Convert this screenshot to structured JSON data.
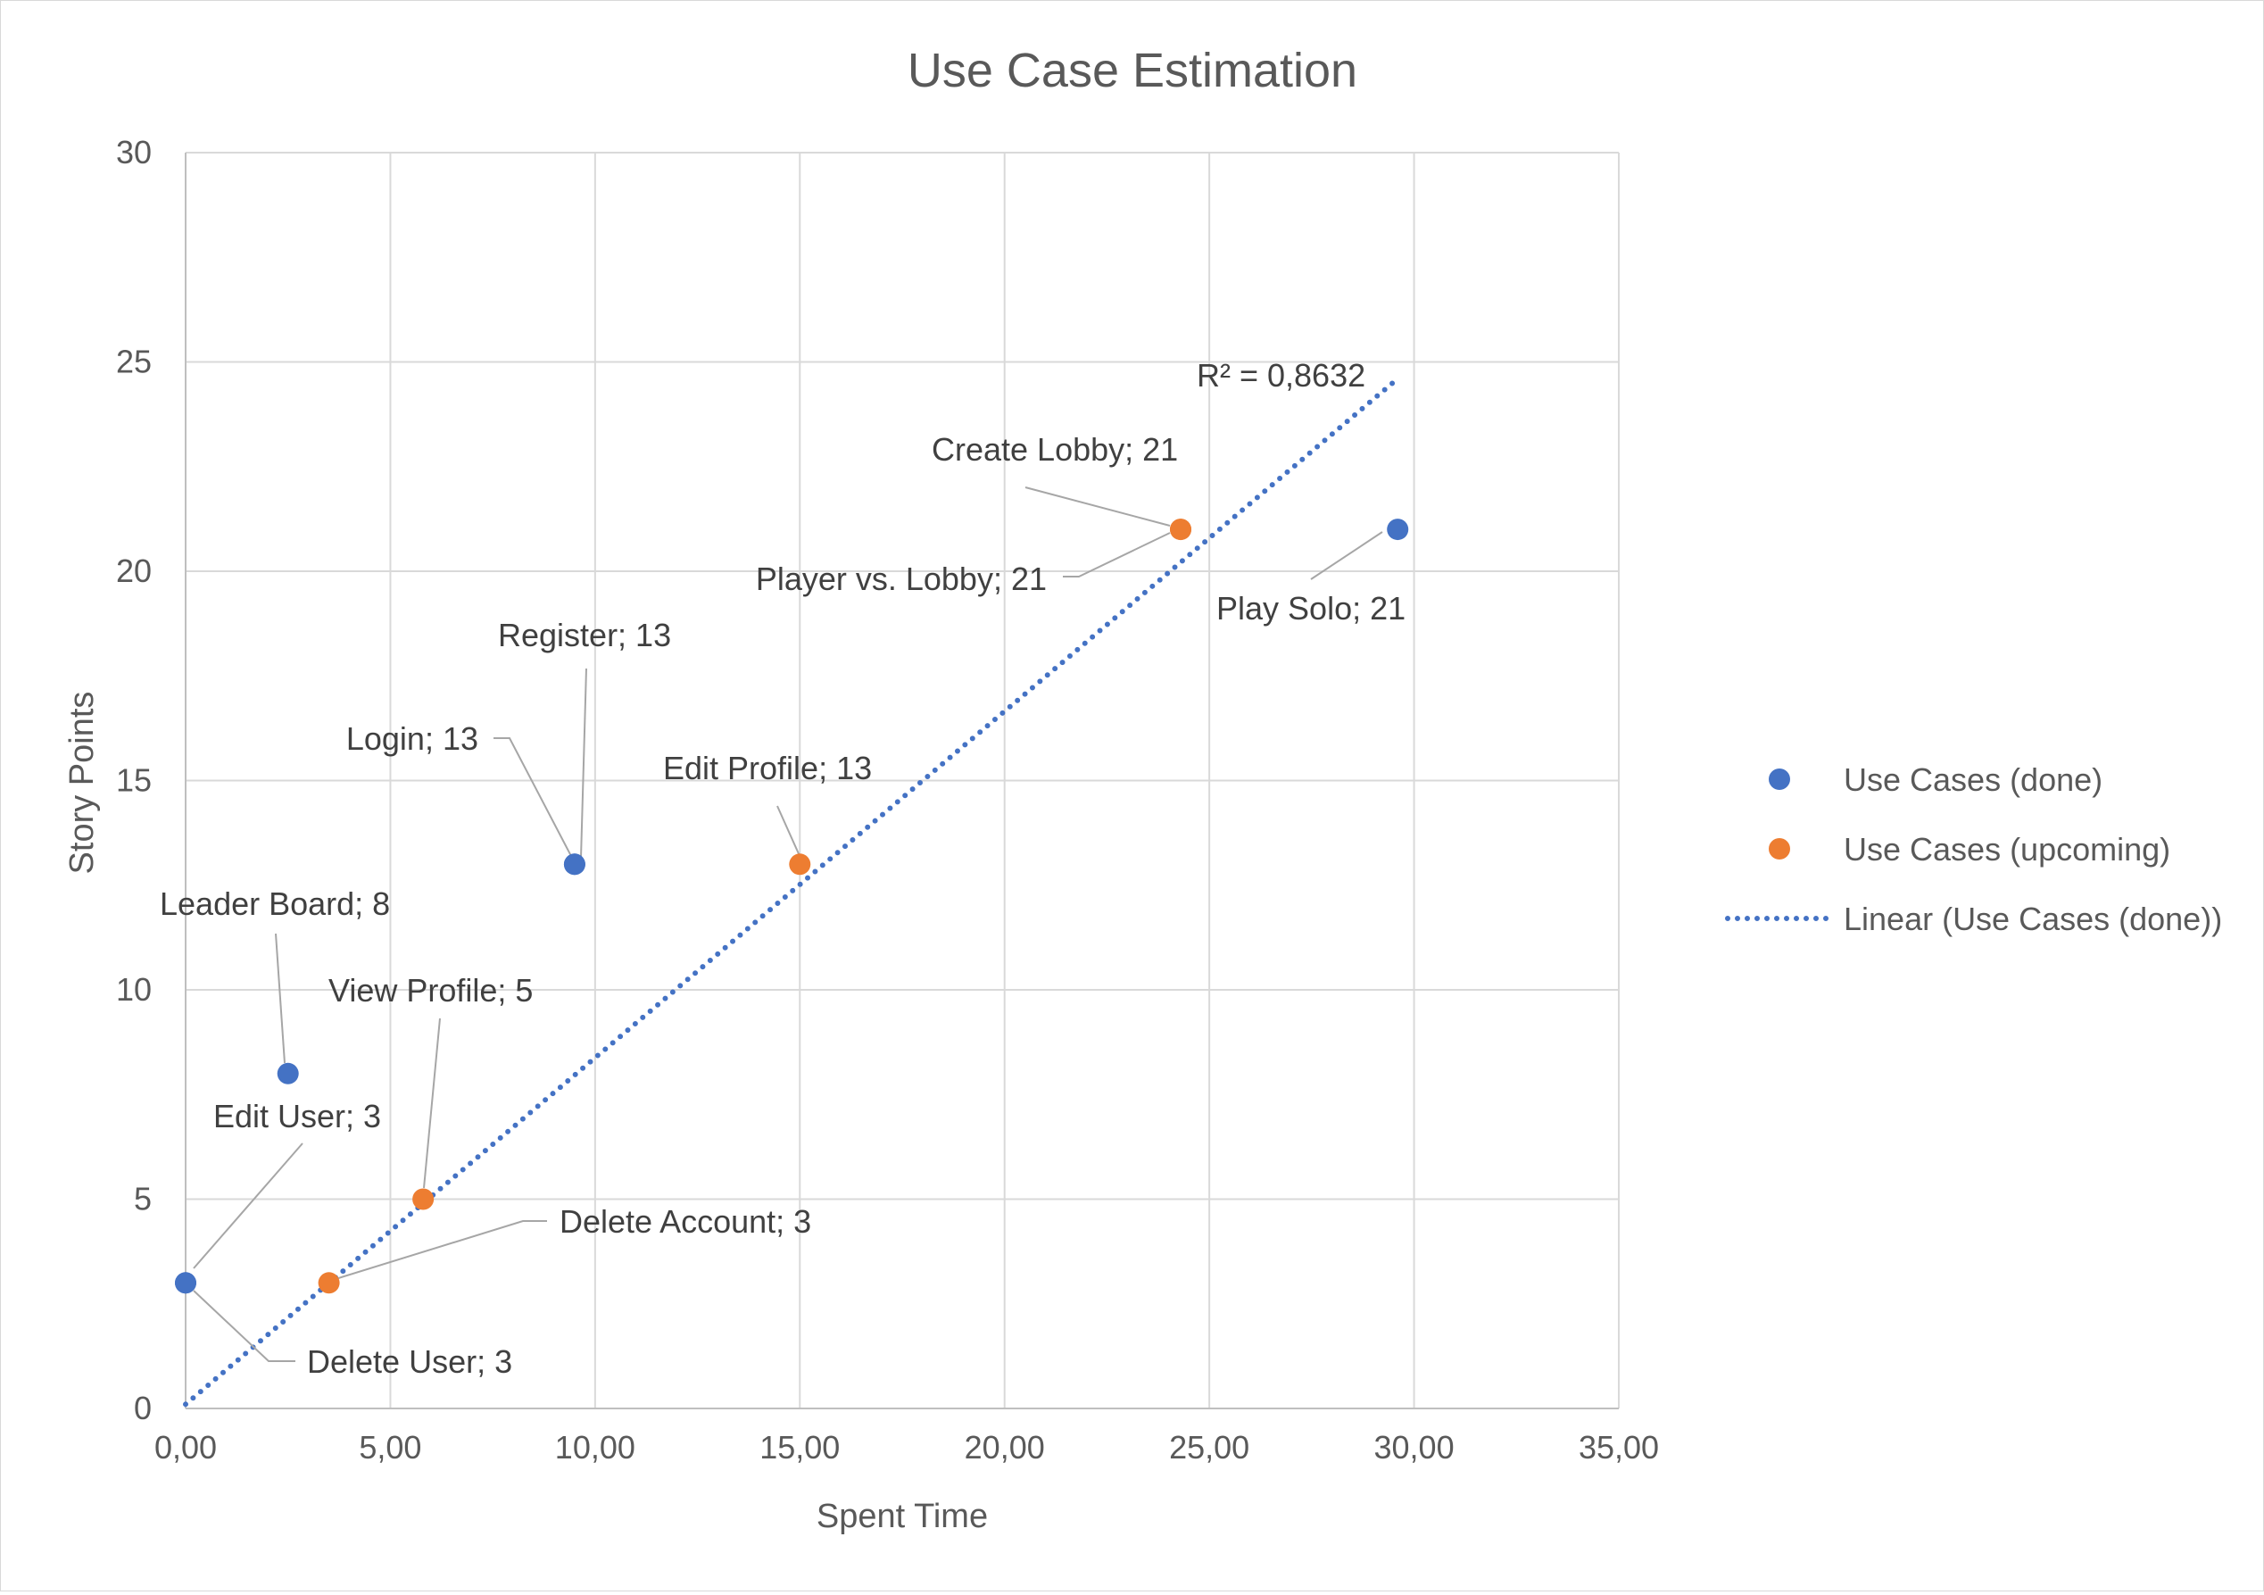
{
  "chart_data": {
    "type": "scatter",
    "title": "Use Case Estimation",
    "xlabel": "Spent Time",
    "ylabel": "Story Points",
    "xlim": [
      0,
      35
    ],
    "ylim": [
      0,
      30
    ],
    "x_ticks": [
      0,
      5,
      10,
      15,
      20,
      25,
      30,
      35
    ],
    "x_tick_labels": [
      "0,00",
      "5,00",
      "10,00",
      "15,00",
      "20,00",
      "25,00",
      "30,00",
      "35,00"
    ],
    "y_ticks": [
      0,
      5,
      10,
      15,
      20,
      25,
      30
    ],
    "y_tick_labels": [
      "0",
      "5",
      "10",
      "15",
      "20",
      "25",
      "30"
    ],
    "grid": true,
    "legend_position": "right",
    "series": [
      {
        "name": "Use Cases (done)",
        "color": "#4472c4",
        "points": [
          {
            "x": 0.0,
            "y": 3,
            "label": "Edit User; 3"
          },
          {
            "x": 0.0,
            "y": 3,
            "label": "Delete User; 3"
          },
          {
            "x": 2.5,
            "y": 8,
            "label": "Leader Board; 8"
          },
          {
            "x": 9.5,
            "y": 13,
            "label": "Login; 13"
          },
          {
            "x": 9.5,
            "y": 13,
            "label": "Register; 13"
          },
          {
            "x": 29.6,
            "y": 21,
            "label": "Play Solo; 21"
          }
        ]
      },
      {
        "name": "Use Cases (upcoming)",
        "color": "#ed7d31",
        "points": [
          {
            "x": 3.5,
            "y": 3,
            "label": "Delete Account; 3"
          },
          {
            "x": 5.8,
            "y": 5,
            "label": "View Profile; 5"
          },
          {
            "x": 15.0,
            "y": 13,
            "label": "Edit Profile; 13"
          },
          {
            "x": 24.3,
            "y": 21,
            "label": "Create Lobby; 21"
          },
          {
            "x": 24.3,
            "y": 21,
            "label": "Player vs. Lobby; 21"
          }
        ]
      }
    ],
    "trendline": {
      "name": "Linear (Use Cases (done))",
      "color": "#4472c4",
      "style": "dotted",
      "from": {
        "x": 0.0,
        "y": 0.1
      },
      "to": {
        "x": 29.6,
        "y": 24.6
      },
      "r_squared_label": "R² = 0,8632"
    }
  }
}
